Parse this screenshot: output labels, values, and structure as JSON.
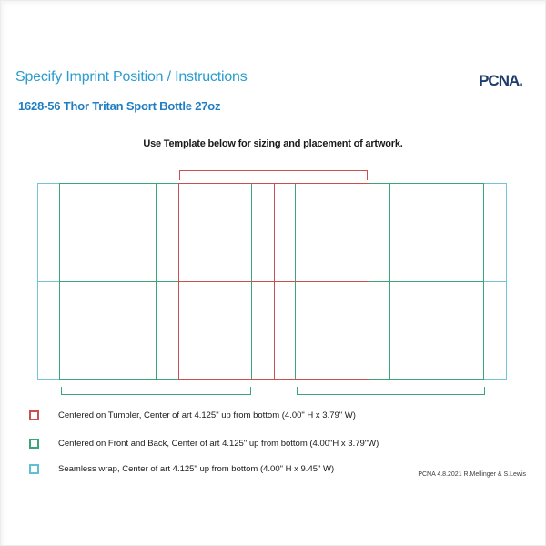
{
  "header": {
    "title": "Specify Imprint Position / Instructions",
    "logo": "PCNA.",
    "product": "1628-56 Thor Tritan Sport Bottle 27oz"
  },
  "template": {
    "heading": "Use Template below for sizing and placement of artwork."
  },
  "diagram": {
    "description": "Flattened bottle wrap template",
    "areas": [
      {
        "name": "tumbler-imprint",
        "color": "#c9504f",
        "width_in": "3.79",
        "height_in": "4.00"
      },
      {
        "name": "front-back-imprint",
        "color": "#3aa578",
        "width_in": "3.79",
        "height_in": "4.00"
      },
      {
        "name": "seamless-wrap",
        "color": "#74c4d8",
        "width_in": "9.45",
        "height_in": "4.00"
      }
    ]
  },
  "legend": [
    {
      "swatch_color": "#c9504f",
      "text": "Centered on Tumbler, Center of art 4.125\" up from bottom (4.00\" H x 3.79\" W)"
    },
    {
      "swatch_color": "#3aa578",
      "text": "Centered on Front and Back, Center of art 4.125\" up from bottom (4.00\"H x 3.79\"W)"
    },
    {
      "swatch_color": "#5fc0d0",
      "text": "Seamless wrap, Center of art 4.125\" up from bottom (4.00\" H x 9.45\" W)"
    }
  ],
  "footer": {
    "credit": "PCNA 4.8.2021 R.Mellinger & S.Lewis"
  },
  "colors": {
    "title_blue": "#2b9ccd",
    "product_blue": "#1f7ec2",
    "logo_navy": "#1d3b6b",
    "wrap_cyan": "#74c4d8",
    "imprint_green": "#3aa578",
    "tumbler_red": "#c9504f"
  }
}
